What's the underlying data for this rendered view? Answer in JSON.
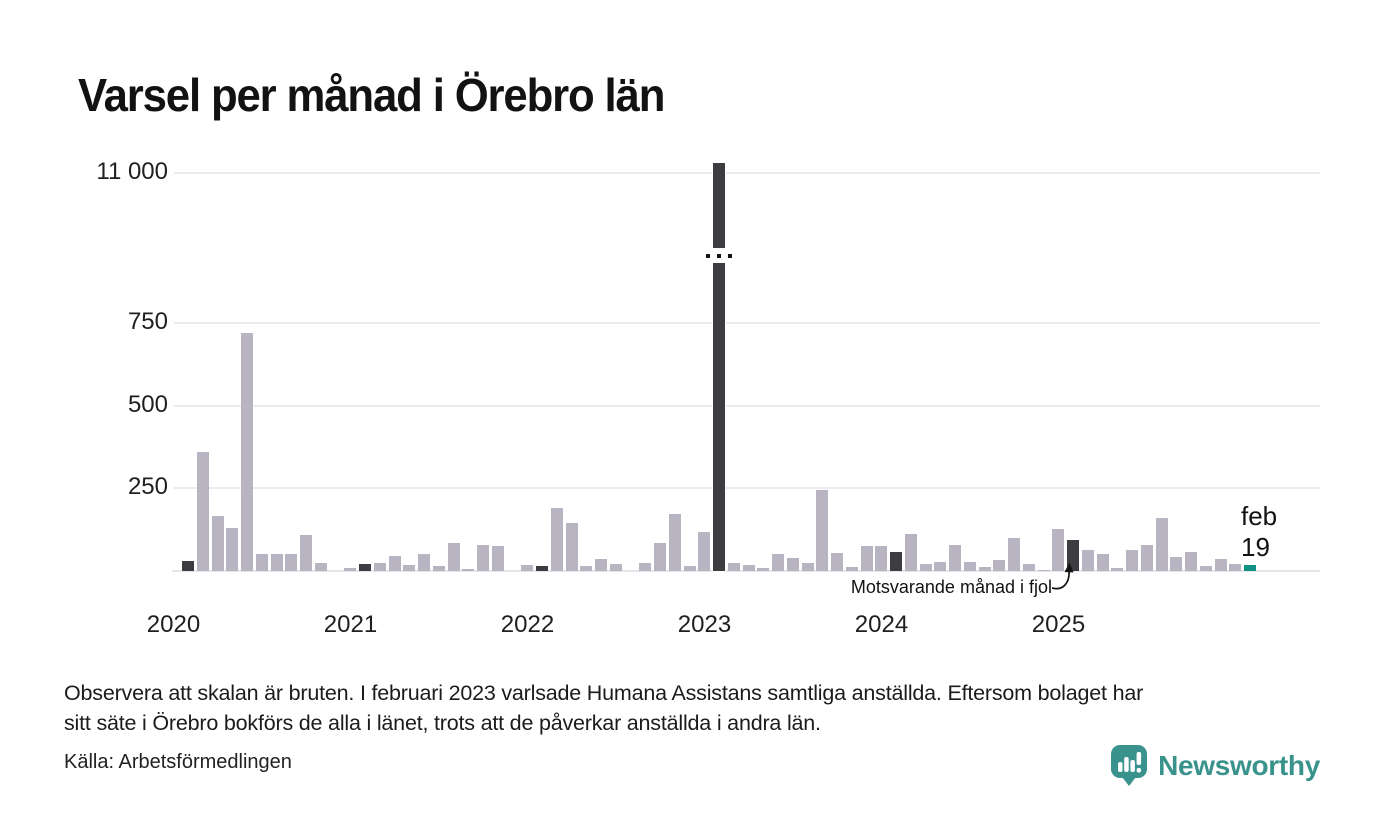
{
  "title": "Varsel per månad i Örebro län",
  "chart_data": {
    "type": "bar",
    "title": "Varsel per månad i Örebro län",
    "broken_scale": true,
    "grid": true,
    "y_ticks": [
      {
        "label": "11 000",
        "value": 11000
      },
      {
        "label": "750",
        "value": 750
      },
      {
        "label": "500",
        "value": 500
      },
      {
        "label": "250",
        "value": 250
      }
    ],
    "x_ticks": [
      "2020",
      "2021",
      "2022",
      "2023",
      "2024",
      "2025"
    ],
    "broken_bar_index": 36,
    "months": [
      {
        "label": "feb 2020",
        "value": 30,
        "style": "dark"
      },
      {
        "label": "mar 2020",
        "value": 360,
        "style": "light"
      },
      {
        "label": "apr 2020",
        "value": 165,
        "style": "light"
      },
      {
        "label": "maj 2020",
        "value": 130,
        "style": "light"
      },
      {
        "label": "jun 2020",
        "value": 720,
        "style": "light"
      },
      {
        "label": "jul 2020",
        "value": 50,
        "style": "light"
      },
      {
        "label": "aug 2020",
        "value": 50,
        "style": "light"
      },
      {
        "label": "sep 2020",
        "value": 50,
        "style": "light"
      },
      {
        "label": "okt 2020",
        "value": 110,
        "style": "light"
      },
      {
        "label": "nov 2020",
        "value": 25,
        "style": "light"
      },
      {
        "label": "dec 2020",
        "value": 0,
        "style": "light"
      },
      {
        "label": "jan 2021",
        "value": 10,
        "style": "light"
      },
      {
        "label": "feb 2021",
        "value": 20,
        "style": "dark"
      },
      {
        "label": "mar 2021",
        "value": 25,
        "style": "light"
      },
      {
        "label": "apr 2021",
        "value": 45,
        "style": "light"
      },
      {
        "label": "maj 2021",
        "value": 18,
        "style": "light"
      },
      {
        "label": "jun 2021",
        "value": 52,
        "style": "light"
      },
      {
        "label": "jul 2021",
        "value": 16,
        "style": "light"
      },
      {
        "label": "aug 2021",
        "value": 85,
        "style": "light"
      },
      {
        "label": "sep 2021",
        "value": 5,
        "style": "light"
      },
      {
        "label": "okt 2021",
        "value": 80,
        "style": "light"
      },
      {
        "label": "nov 2021",
        "value": 76,
        "style": "light"
      },
      {
        "label": "dec 2021",
        "value": 0,
        "style": "light"
      },
      {
        "label": "jan 2022",
        "value": 18,
        "style": "light"
      },
      {
        "label": "feb 2022",
        "value": 15,
        "style": "dark"
      },
      {
        "label": "mar 2022",
        "value": 190,
        "style": "light"
      },
      {
        "label": "apr 2022",
        "value": 146,
        "style": "light"
      },
      {
        "label": "maj 2022",
        "value": 16,
        "style": "light"
      },
      {
        "label": "jun 2022",
        "value": 37,
        "style": "light"
      },
      {
        "label": "jul 2022",
        "value": 20,
        "style": "light"
      },
      {
        "label": "aug 2022",
        "value": 0,
        "style": "light"
      },
      {
        "label": "sep 2022",
        "value": 23,
        "style": "light"
      },
      {
        "label": "okt 2022",
        "value": 86,
        "style": "light"
      },
      {
        "label": "nov 2022",
        "value": 171,
        "style": "light"
      },
      {
        "label": "dec 2022",
        "value": 15,
        "style": "light"
      },
      {
        "label": "jan 2023",
        "value": 119,
        "style": "light"
      },
      {
        "label": "feb 2023",
        "value": 11000,
        "style": "dark",
        "exceeds_scale": true
      },
      {
        "label": "mar 2023",
        "value": 23,
        "style": "light"
      },
      {
        "label": "apr 2023",
        "value": 18,
        "style": "light"
      },
      {
        "label": "maj 2023",
        "value": 8,
        "style": "light"
      },
      {
        "label": "jun 2023",
        "value": 52,
        "style": "light"
      },
      {
        "label": "jul 2023",
        "value": 38,
        "style": "light"
      },
      {
        "label": "aug 2023",
        "value": 23,
        "style": "light"
      },
      {
        "label": "sep 2023",
        "value": 245,
        "style": "light"
      },
      {
        "label": "okt 2023",
        "value": 53,
        "style": "light"
      },
      {
        "label": "nov 2023",
        "value": 11,
        "style": "light"
      },
      {
        "label": "dec 2023",
        "value": 76,
        "style": "light"
      },
      {
        "label": "jan 2024",
        "value": 76,
        "style": "light"
      },
      {
        "label": "feb 2024",
        "value": 56,
        "style": "dark"
      },
      {
        "label": "mar 2024",
        "value": 112,
        "style": "light"
      },
      {
        "label": "apr 2024",
        "value": 22,
        "style": "light"
      },
      {
        "label": "maj 2024",
        "value": 28,
        "style": "light"
      },
      {
        "label": "jun 2024",
        "value": 80,
        "style": "light"
      },
      {
        "label": "jul 2024",
        "value": 26,
        "style": "light"
      },
      {
        "label": "aug 2024",
        "value": 13,
        "style": "light"
      },
      {
        "label": "sep 2024",
        "value": 33,
        "style": "light"
      },
      {
        "label": "okt 2024",
        "value": 99,
        "style": "light"
      },
      {
        "label": "nov 2024",
        "value": 20,
        "style": "light"
      },
      {
        "label": "dec 2024",
        "value": 3,
        "style": "light"
      },
      {
        "label": "jan 2025",
        "value": 126,
        "style": "light"
      },
      {
        "label": "feb 2025",
        "value": 94,
        "style": "dark"
      },
      {
        "label": "mar 2025",
        "value": 63,
        "style": "light"
      },
      {
        "label": "apr 2025",
        "value": 50,
        "style": "light"
      },
      {
        "label": "maj 2025",
        "value": 10,
        "style": "light"
      },
      {
        "label": "jun 2025",
        "value": 63,
        "style": "light"
      },
      {
        "label": "jul 2025",
        "value": 80,
        "style": "light"
      },
      {
        "label": "aug 2025",
        "value": 159,
        "style": "light"
      },
      {
        "label": "sep 2025",
        "value": 43,
        "style": "light"
      },
      {
        "label": "okt 2025",
        "value": 56,
        "style": "light"
      },
      {
        "label": "nov 2025",
        "value": 16,
        "style": "light"
      },
      {
        "label": "dec 2025",
        "value": 36,
        "style": "light"
      },
      {
        "label": "jan 2026",
        "value": 22,
        "style": "light"
      },
      {
        "label": "feb 2026",
        "value": 19,
        "style": "latest"
      }
    ]
  },
  "annotation": {
    "text": "Motsvarande månad i fjol",
    "points_to": "feb 2025"
  },
  "latest_label": {
    "month": "feb",
    "value": "19"
  },
  "footnote": {
    "line1": "Observera att skalan är bruten. I februari 2023 varlsade Humana Assistans samtliga anställda. Eftersom bolaget har",
    "line2": "sitt säte i Örebro bokförs de alla i länet, trots att de påverkar anställda i andra län."
  },
  "source": "Källa: Arbetsförmedlingen",
  "logo": {
    "text": "Newsworthy"
  },
  "colors": {
    "bar_light": "#b8b4c2",
    "bar_dark": "#3d3c40",
    "bar_latest": "#0f9184",
    "gridline": "#eceaf0",
    "baseline": "#e7e5ec",
    "axis_text": "#1f1f1f",
    "break_dots": "#141414",
    "brand_teal": "#39938c"
  }
}
